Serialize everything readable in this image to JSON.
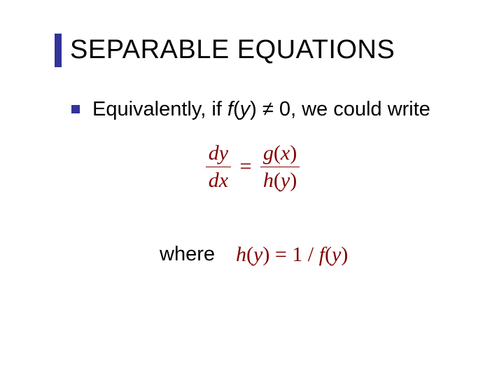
{
  "title": "SEPARABLE EQUATIONS",
  "bullet": {
    "prefix": "Equivalently, if ",
    "fn": "f",
    "paren_open": "(",
    "var": "y",
    "paren_close": ") ",
    "neq": "≠",
    "suffix": " 0, we could write"
  },
  "equation": {
    "lhs_num": "dy",
    "lhs_den": "dx",
    "eq": "=",
    "rhs_num_g": "g",
    "rhs_num_po": "(",
    "rhs_num_x": "x",
    "rhs_num_pc": ")",
    "rhs_den_h": "h",
    "rhs_den_po": "(",
    "rhs_den_y": "y",
    "rhs_den_pc": ")"
  },
  "where": {
    "label": "where",
    "h": "h",
    "po1": "(",
    "y1": "y",
    "pc1": ")",
    "eq": " = ",
    "one_over": "1 / ",
    "f": "f",
    "po2": "(",
    "y2": "y",
    "pc2": ")"
  },
  "colors": {
    "accent": "#333399",
    "equation": "#800000",
    "text": "#000000",
    "background": "#ffffff"
  },
  "typography": {
    "title_fontsize": 38,
    "body_fontsize": 29,
    "equation_fontsize": 30
  }
}
